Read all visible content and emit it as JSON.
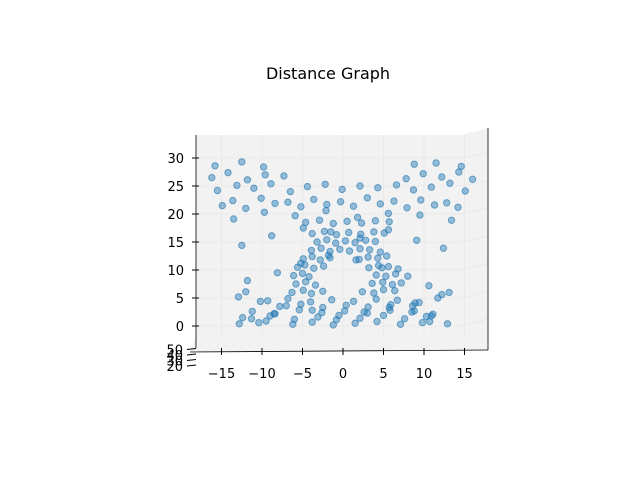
{
  "chart_data": {
    "type": "scatter",
    "title": "Distance Graph",
    "xlabel": "",
    "ylabel": "",
    "zlabel": "",
    "x_ticks": [
      "−15",
      "−10",
      "−5",
      "0",
      "5",
      "10",
      "15"
    ],
    "x_tick_values": [
      -15,
      -10,
      -5,
      0,
      5,
      10,
      15
    ],
    "z_ticks": [
      "0",
      "5",
      "10",
      "15",
      "20",
      "25",
      "30"
    ],
    "z_tick_values": [
      0,
      5,
      10,
      15,
      20,
      25,
      30
    ],
    "y_ticks": [
      "20",
      "30",
      "40",
      "50"
    ],
    "xlim": [
      -18,
      18
    ],
    "zlim": [
      -1,
      32
    ],
    "grid": true,
    "view": "front elevation of a 3D scatter",
    "marker_color": "#1f77b4",
    "marker_alpha": 0.45,
    "series": [
      {
        "name": "",
        "x": [
          -12.8,
          -9.5,
          -6.2,
          -3.8,
          -1.2,
          1.5,
          4.2,
          7.1,
          9.8,
          12.9,
          -12.4,
          -9.0,
          -6.0,
          -3.1,
          -0.8,
          2.1,
          5.0,
          7.6,
          10.3,
          -11.2,
          -8.4,
          -5.4,
          -2.6,
          0.2,
          3.0,
          5.8,
          8.5,
          11.1,
          -7.8,
          -5.2,
          -2.5,
          0.4,
          3.1,
          5.9,
          8.6,
          -9.3,
          -6.8,
          -4.0,
          -1.4,
          1.3,
          4.1,
          6.7,
          9.4,
          -6.3,
          -4.9,
          -3.9,
          -2.5,
          2.4,
          3.8,
          5.0,
          6.4,
          -5.8,
          -4.6,
          -3.4,
          3.6,
          4.9,
          6.1,
          7.2,
          -6.1,
          -5.0,
          -4.2,
          4.1,
          5.3,
          6.5,
          -5.6,
          -4.7,
          -3.6,
          -2.4,
          3.2,
          4.4,
          5.6,
          6.8,
          -4.9,
          -3.8,
          -2.8,
          -1.6,
          2.0,
          3.1,
          4.3,
          5.4,
          -3.9,
          -2.7,
          -1.6,
          -0.4,
          0.8,
          2.1,
          3.3,
          4.6,
          -3.2,
          -2.0,
          -0.9,
          0.3,
          1.5,
          2.8,
          4.0,
          -3.8,
          -2.3,
          -0.8,
          0.7,
          2.2,
          3.8,
          5.1,
          -4.6,
          -2.9,
          -1.2,
          0.5,
          2.3,
          4.0,
          5.7,
          -14.9,
          -13.6,
          -12.0,
          -10.1,
          -8.4,
          -6.8,
          -5.2,
          -3.6,
          -2.0,
          -0.3,
          1.3,
          3.0,
          4.6,
          6.3,
          7.9,
          9.6,
          11.3,
          12.8,
          14.2,
          -15.5,
          -13.1,
          -11.0,
          -8.9,
          -6.5,
          -4.4,
          -2.2,
          -0.1,
          2.1,
          4.3,
          6.6,
          8.7,
          10.9,
          13.2,
          15.1,
          -16.2,
          -14.2,
          -11.8,
          -9.6,
          -7.3,
          7.8,
          9.9,
          12.2,
          14.3,
          16.0,
          -15.8,
          -12.5,
          -9.8,
          8.8,
          11.5,
          14.6,
          -12.9,
          -10.2,
          -7.0,
          -3.8,
          -0.5,
          2.6,
          5.7,
          8.9,
          11.7,
          -11.8,
          -8.1,
          -5.2,
          -1.8,
          1.6,
          4.8,
          8.0,
          10.6,
          13.1,
          -12.5,
          -8.8,
          -4.9,
          -1.5,
          2.1,
          5.6,
          9.1,
          12.4,
          -13.5,
          -9.7,
          -5.9,
          -2.1,
          1.8,
          5.6,
          9.5,
          13.4,
          -8.5,
          -11.3,
          10.9,
          8.8,
          -12.0,
          12.2,
          -10.4,
          10.7
        ],
        "z": [
          0.4,
          0.9,
          0.3,
          0.7,
          0.2,
          0.5,
          0.8,
          0.3,
          0.6,
          0.4,
          1.5,
          1.8,
          1.2,
          1.6,
          1.1,
          1.4,
          1.9,
          1.3,
          1.7,
          2.6,
          2.2,
          2.9,
          2.4,
          2.7,
          2.3,
          2.8,
          2.5,
          2.1,
          3.5,
          3.9,
          3.3,
          3.7,
          3.4,
          3.8,
          3.6,
          4.5,
          4.9,
          4.3,
          4.7,
          4.4,
          4.8,
          4.6,
          4.2,
          6.0,
          6.4,
          5.8,
          6.2,
          6.1,
          5.9,
          6.5,
          6.3,
          7.5,
          7.9,
          7.3,
          7.6,
          7.8,
          7.4,
          7.7,
          9.0,
          9.4,
          8.8,
          9.1,
          8.9,
          9.3,
          10.5,
          10.9,
          10.3,
          10.7,
          10.4,
          10.8,
          10.6,
          10.2,
          12.0,
          12.4,
          11.8,
          12.2,
          11.9,
          12.3,
          12.1,
          12.5,
          13.5,
          13.9,
          13.3,
          13.7,
          13.4,
          13.8,
          13.6,
          13.2,
          15.0,
          15.4,
          14.8,
          15.2,
          14.9,
          15.3,
          15.1,
          16.5,
          16.9,
          16.3,
          16.7,
          16.4,
          16.8,
          16.6,
          18.5,
          18.9,
          18.3,
          18.7,
          18.4,
          18.8,
          18.6,
          21.5,
          22.4,
          21.0,
          22.8,
          21.9,
          22.1,
          21.3,
          22.6,
          21.7,
          22.2,
          21.4,
          22.9,
          21.8,
          22.3,
          21.1,
          22.5,
          21.6,
          22.0,
          21.2,
          24.2,
          25.1,
          24.6,
          25.4,
          24.0,
          24.9,
          25.3,
          24.4,
          25.0,
          24.7,
          25.2,
          24.3,
          24.8,
          25.5,
          24.1,
          26.5,
          27.4,
          26.1,
          27.0,
          26.8,
          26.3,
          27.2,
          26.6,
          27.5,
          26.2,
          28.6,
          29.3,
          28.4,
          28.9,
          29.1,
          28.5,
          5.2,
          4.4,
          3.6,
          2.8,
          1.9,
          2.5,
          3.3,
          4.1,
          5.0,
          8.1,
          9.5,
          11.2,
          12.6,
          11.8,
          10.4,
          8.9,
          7.2,
          6.0,
          14.4,
          16.1,
          17.5,
          16.8,
          15.7,
          17.2,
          15.3,
          13.9,
          19.1,
          20.3,
          19.7,
          20.6,
          19.4,
          20.1,
          19.8,
          18.9,
          2.2,
          1.3,
          1.8,
          2.7,
          6.1,
          5.6,
          0.6,
          0.8
        ]
      }
    ]
  }
}
